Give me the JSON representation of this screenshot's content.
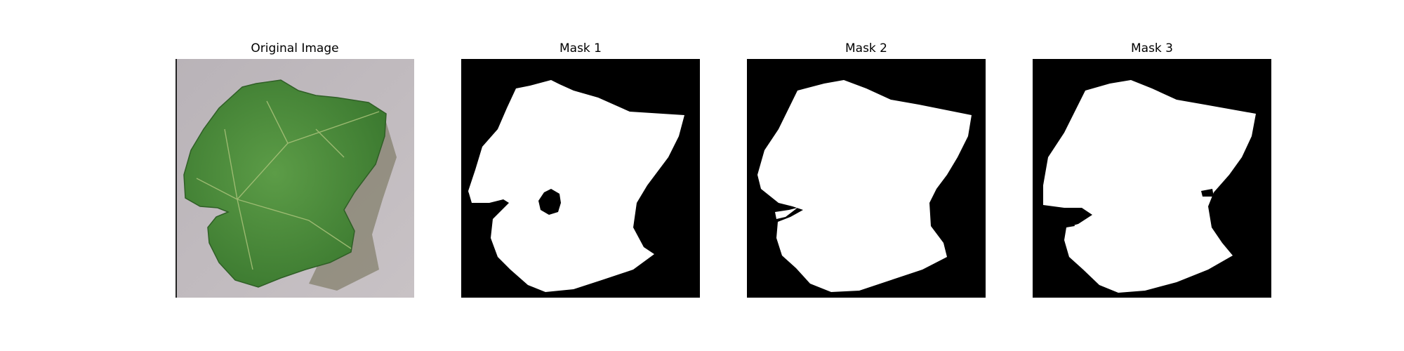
{
  "figure": {
    "panels": [
      {
        "title": "Original Image"
      },
      {
        "title": "Mask 1"
      },
      {
        "title": "Mask 2"
      },
      {
        "title": "Mask 3"
      }
    ]
  },
  "colors": {
    "mask_background": "#000000",
    "mask_foreground": "#ffffff",
    "leaf_green": "#4a8c3a",
    "surface_grey": "#b8b2b6"
  }
}
